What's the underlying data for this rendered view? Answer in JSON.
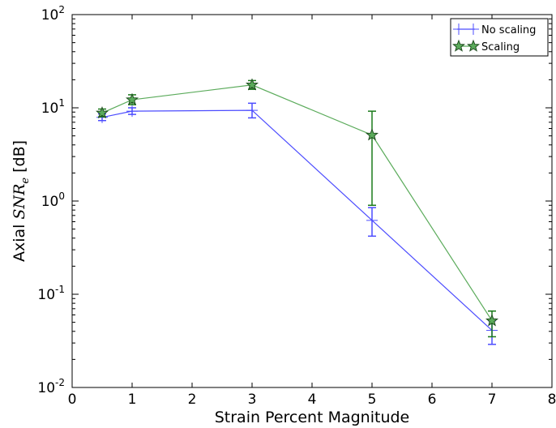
{
  "chart_data": {
    "type": "line",
    "title": "",
    "xlabel": "Strain Percent Magnitude",
    "ylabel_prefix": "Axial ",
    "ylabel_math_main": "SNR",
    "ylabel_math_sub": "e",
    "ylabel_suffix": " [dB]",
    "xlim": [
      0,
      8
    ],
    "ylim": [
      0.01,
      100
    ],
    "yscale": "log",
    "xticks": [
      0,
      1,
      2,
      3,
      4,
      5,
      6,
      7,
      8
    ],
    "xtick_labels": [
      "0",
      "1",
      "2",
      "3",
      "4",
      "5",
      "6",
      "7",
      "8"
    ],
    "yticks": [
      {
        "value": 0.01,
        "base": "10",
        "exp": "-2"
      },
      {
        "value": 0.1,
        "base": "10",
        "exp": "-1"
      },
      {
        "value": 1,
        "base": "10",
        "exp": "0"
      },
      {
        "value": 10,
        "base": "10",
        "exp": "1"
      },
      {
        "value": 100,
        "base": "10",
        "exp": "2"
      }
    ],
    "grid": false,
    "legend_position": "top-right",
    "series": [
      {
        "name": "No scaling",
        "color": "#4c4cff",
        "marker": "plus",
        "x": [
          0.5,
          1,
          3,
          5,
          7
        ],
        "y": [
          7.9,
          9.2,
          9.4,
          0.62,
          0.041
        ],
        "err_low": [
          7.3,
          8.5,
          7.8,
          0.42,
          0.029
        ],
        "err_high": [
          8.6,
          10.0,
          11.2,
          0.85,
          0.052
        ]
      },
      {
        "name": "Scaling",
        "color": "#5bab5b",
        "err_color": "#1a7a1a",
        "marker": "star",
        "x": [
          0.5,
          1,
          3,
          5,
          7
        ],
        "y": [
          8.8,
          12.2,
          17.6,
          5.1,
          0.052
        ],
        "err_low": [
          8.0,
          10.8,
          15.8,
          0.9,
          0.035
        ],
        "err_high": [
          9.7,
          13.8,
          19.6,
          9.2,
          0.066
        ]
      }
    ]
  }
}
